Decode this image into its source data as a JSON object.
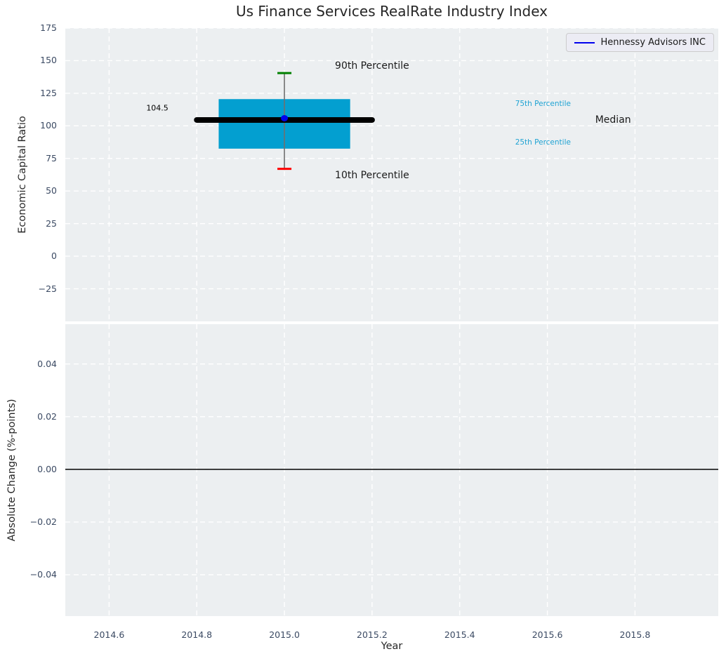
{
  "title": "Us Finance Services RealRate Industry Index",
  "legend": {
    "label": "Hennessy Advisors INC"
  },
  "colors": {
    "axes_background": "#eceff1",
    "grid": "#ffffff",
    "tick_label": "#3b4a63",
    "box_fill": "#039fd0",
    "whisker": "#707070",
    "cap_90th": "#008000",
    "cap_10th": "#ff0000",
    "median_line": "#000000",
    "company_point": "#0000ee",
    "legend_line": "#0000ee",
    "percentile_label": "#1fa3d3",
    "zero_line": "#000000"
  },
  "chart_data": [
    {
      "type": "boxplot",
      "panel": "top",
      "title": "Us Finance Services RealRate Industry Index",
      "ylabel": "Economic Capital Ratio",
      "xlim": [
        2014.5,
        2015.99
      ],
      "ylim": [
        -50,
        175
      ],
      "grid": "white-dashed",
      "legend_position": "upper right",
      "yticks": {
        "values": [
          175,
          150,
          125,
          100,
          75,
          50,
          25,
          0,
          -25
        ],
        "labels": [
          "175",
          "150",
          "125",
          "100",
          "75",
          "50",
          "25",
          "0",
          "−25"
        ]
      },
      "box": {
        "x_center": 2015.0,
        "x_left": 2014.85,
        "x_right": 2015.15,
        "p90": 140.5,
        "p75": 120.5,
        "median": 104.5,
        "p25": 82.5,
        "p10": 67
      },
      "median_line": {
        "x1": 2014.8,
        "x2": 2015.2,
        "y": 104.5
      },
      "company_point": {
        "name": "Hennessy Advisors INC",
        "x": 2015.0,
        "y": 104.5
      },
      "annotations": [
        {
          "text": "104.5",
          "x": 2014.71,
          "y": 113.5,
          "color": "#000000",
          "size": 11
        },
        {
          "text": "90th Percentile",
          "x": 2015.2,
          "y": 146,
          "color": "#1a1a1a",
          "size": 14
        },
        {
          "text": "10th Percentile",
          "x": 2015.2,
          "y": 62,
          "color": "#1a1a1a",
          "size": 14
        },
        {
          "text": "75th Percentile",
          "x": 2015.59,
          "y": 117,
          "color": "#1fa3d3",
          "size": 10.5
        },
        {
          "text": "25th Percentile",
          "x": 2015.59,
          "y": 87,
          "color": "#1fa3d3",
          "size": 10.5
        },
        {
          "text": "Median",
          "x": 2015.75,
          "y": 104.5,
          "color": "#1a1a1a",
          "size": 14
        }
      ]
    },
    {
      "type": "line",
      "panel": "bottom",
      "xlabel": "Year",
      "ylabel": "Absolute Change (%-points)",
      "xlim": [
        2014.5,
        2015.99
      ],
      "ylim": [
        -0.0557,
        0.0551
      ],
      "grid": "white-dashed",
      "zero_line_y": 0.0,
      "xticks": {
        "values": [
          2014.6,
          2014.8,
          2015.0,
          2015.2,
          2015.4,
          2015.6,
          2015.8
        ],
        "labels": [
          "2014.6",
          "2014.8",
          "2015.0",
          "2015.2",
          "2015.4",
          "2015.6",
          "2015.8"
        ]
      },
      "yticks": {
        "values": [
          0.04,
          0.02,
          0.0,
          -0.02,
          -0.04
        ],
        "labels": [
          "0.04",
          "0.02",
          "0.00",
          "−0.02",
          "−0.04"
        ]
      }
    }
  ]
}
